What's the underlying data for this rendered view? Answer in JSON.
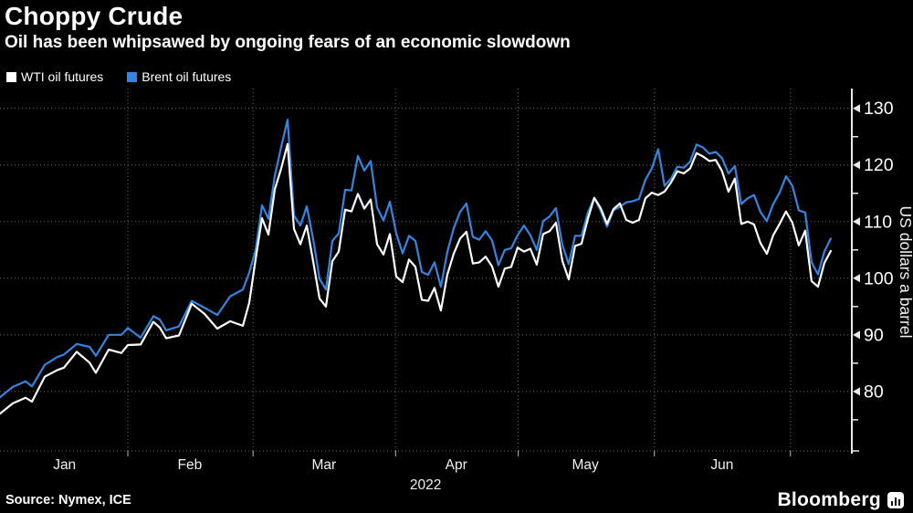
{
  "header": {
    "title": "Choppy Crude",
    "subtitle": "Oil has been whipsawed by ongoing fears of an economic slowdown"
  },
  "footer": {
    "source": "Source: Nymex, ICE",
    "brand": "Bloomberg"
  },
  "chart_data": {
    "type": "line",
    "title": "Choppy Crude",
    "subtitle": "Oil has been whipsawed by ongoing fears of an economic slowdown",
    "ylabel": "US dollars a barrel",
    "x_unit": "trading-day index, Jan 3 2022 = 0",
    "xlim": [
      0,
      133.3
    ],
    "ylim": [
      69.5,
      133.5
    ],
    "grid": "dotted",
    "legend_position": "top-left",
    "axis_side": "right",
    "colors": {
      "background": "#000000",
      "grid": "#6a6a6a",
      "axis": "#e8e8e8",
      "text": "#ffffff"
    },
    "y_ticks_major": [
      80,
      90,
      100,
      110,
      120,
      130
    ],
    "y_ticks_minor": [
      75,
      85,
      95,
      105,
      115,
      125
    ],
    "x_gridline_days": [
      20,
      39.6,
      61.9,
      81.1,
      102.4,
      123.7
    ],
    "x_month_labels": [
      {
        "label": "Jan",
        "day": 10.1
      },
      {
        "label": "Feb",
        "day": 29.7
      },
      {
        "label": "Mar",
        "day": 50.7
      },
      {
        "label": "Apr",
        "day": 71.4
      },
      {
        "label": "May",
        "day": 91.6
      },
      {
        "label": "Jun",
        "day": 113.0
      }
    ],
    "year_label": {
      "label": "2022",
      "day": 66.6
    },
    "days": [
      0,
      2,
      4,
      5,
      7,
      9,
      10,
      12,
      14,
      15,
      17,
      19,
      20,
      22,
      24,
      25,
      26,
      28,
      30,
      32,
      34,
      36,
      38,
      39,
      40,
      41,
      42,
      43,
      44,
      45,
      46,
      47,
      48,
      49,
      50,
      51,
      52,
      53,
      54,
      55,
      56,
      57,
      58,
      59,
      60,
      61,
      62,
      63,
      64,
      65,
      66,
      67,
      68,
      69,
      70,
      71,
      72,
      73,
      74,
      75,
      76,
      77,
      78,
      79,
      80,
      81,
      82,
      83,
      84,
      85,
      86,
      87,
      88,
      89,
      90,
      91,
      92,
      93,
      94,
      95,
      96,
      97,
      98,
      99,
      100,
      101,
      102,
      103,
      104,
      105,
      106,
      107,
      108,
      109,
      110,
      111,
      112,
      113,
      114,
      115,
      116,
      117,
      118,
      119,
      120,
      121,
      122,
      123,
      124,
      125,
      126,
      127,
      128,
      129,
      130
    ],
    "series": [
      {
        "name": "Brent oil futures",
        "color": "#3585e0",
        "values": [
          79.0,
          80.8,
          81.8,
          80.9,
          84.7,
          86.1,
          86.5,
          88.4,
          87.9,
          86.3,
          90.0,
          90.0,
          91.2,
          89.5,
          93.3,
          92.7,
          90.8,
          91.5,
          96.0,
          94.8,
          93.5,
          96.8,
          98.0,
          101.0,
          105.0,
          112.9,
          110.5,
          118.1,
          123.2,
          128.0,
          111.1,
          109.3,
          112.7,
          106.9,
          99.9,
          98.0,
          106.6,
          107.9,
          115.6,
          115.5,
          121.6,
          119.0,
          120.7,
          112.5,
          110.2,
          113.5,
          107.9,
          104.4,
          107.5,
          106.6,
          101.1,
          100.6,
          102.8,
          98.5,
          104.6,
          108.8,
          111.7,
          113.2,
          107.3,
          106.8,
          108.3,
          106.7,
          102.3,
          105.0,
          105.3,
          107.6,
          109.3,
          107.6,
          105.0,
          110.1,
          110.9,
          112.4,
          105.9,
          102.5,
          107.5,
          107.5,
          111.6,
          114.2,
          111.9,
          109.1,
          112.0,
          112.6,
          113.4,
          113.6,
          114.0,
          117.4,
          119.4,
          122.8,
          116.3,
          117.6,
          119.7,
          119.5,
          120.6,
          123.6,
          123.1,
          122.0,
          122.3,
          121.2,
          118.5,
          119.8,
          113.1,
          114.1,
          114.7,
          111.7,
          110.1,
          113.1,
          115.1,
          118.0,
          116.3,
          112.0,
          111.6,
          102.8,
          100.7,
          104.7,
          107.0
        ]
      },
      {
        "name": "WTI oil futures",
        "color": "#ffffff",
        "values": [
          76.1,
          77.9,
          78.9,
          78.2,
          82.6,
          83.8,
          84.2,
          87.0,
          85.1,
          83.3,
          87.4,
          86.8,
          88.2,
          88.3,
          92.3,
          91.3,
          89.4,
          89.9,
          95.5,
          93.7,
          91.1,
          92.4,
          91.6,
          95.7,
          103.4,
          110.6,
          107.7,
          115.7,
          119.4,
          123.7,
          108.7,
          106.0,
          109.3,
          103.0,
          96.4,
          95.0,
          103.0,
          104.7,
          112.1,
          111.8,
          114.9,
          112.3,
          113.9,
          106.0,
          104.2,
          107.8,
          100.3,
          99.3,
          103.3,
          102.0,
          96.2,
          96.0,
          98.3,
          94.3,
          100.6,
          104.3,
          107.0,
          108.2,
          102.6,
          102.8,
          103.8,
          102.1,
          98.5,
          101.7,
          102.0,
          105.4,
          104.7,
          105.2,
          102.4,
          107.8,
          108.3,
          109.8,
          103.1,
          99.8,
          105.7,
          106.1,
          110.5,
          114.2,
          112.4,
          109.6,
          112.2,
          113.2,
          110.3,
          109.8,
          110.3,
          114.1,
          115.1,
          114.7,
          115.3,
          116.9,
          118.9,
          118.5,
          119.4,
          122.1,
          121.5,
          120.7,
          120.9,
          118.9,
          115.3,
          117.6,
          109.6,
          110.0,
          109.5,
          106.2,
          104.3,
          107.6,
          109.6,
          111.8,
          109.8,
          105.8,
          108.4,
          99.5,
          98.5,
          102.7,
          104.8
        ]
      }
    ]
  }
}
